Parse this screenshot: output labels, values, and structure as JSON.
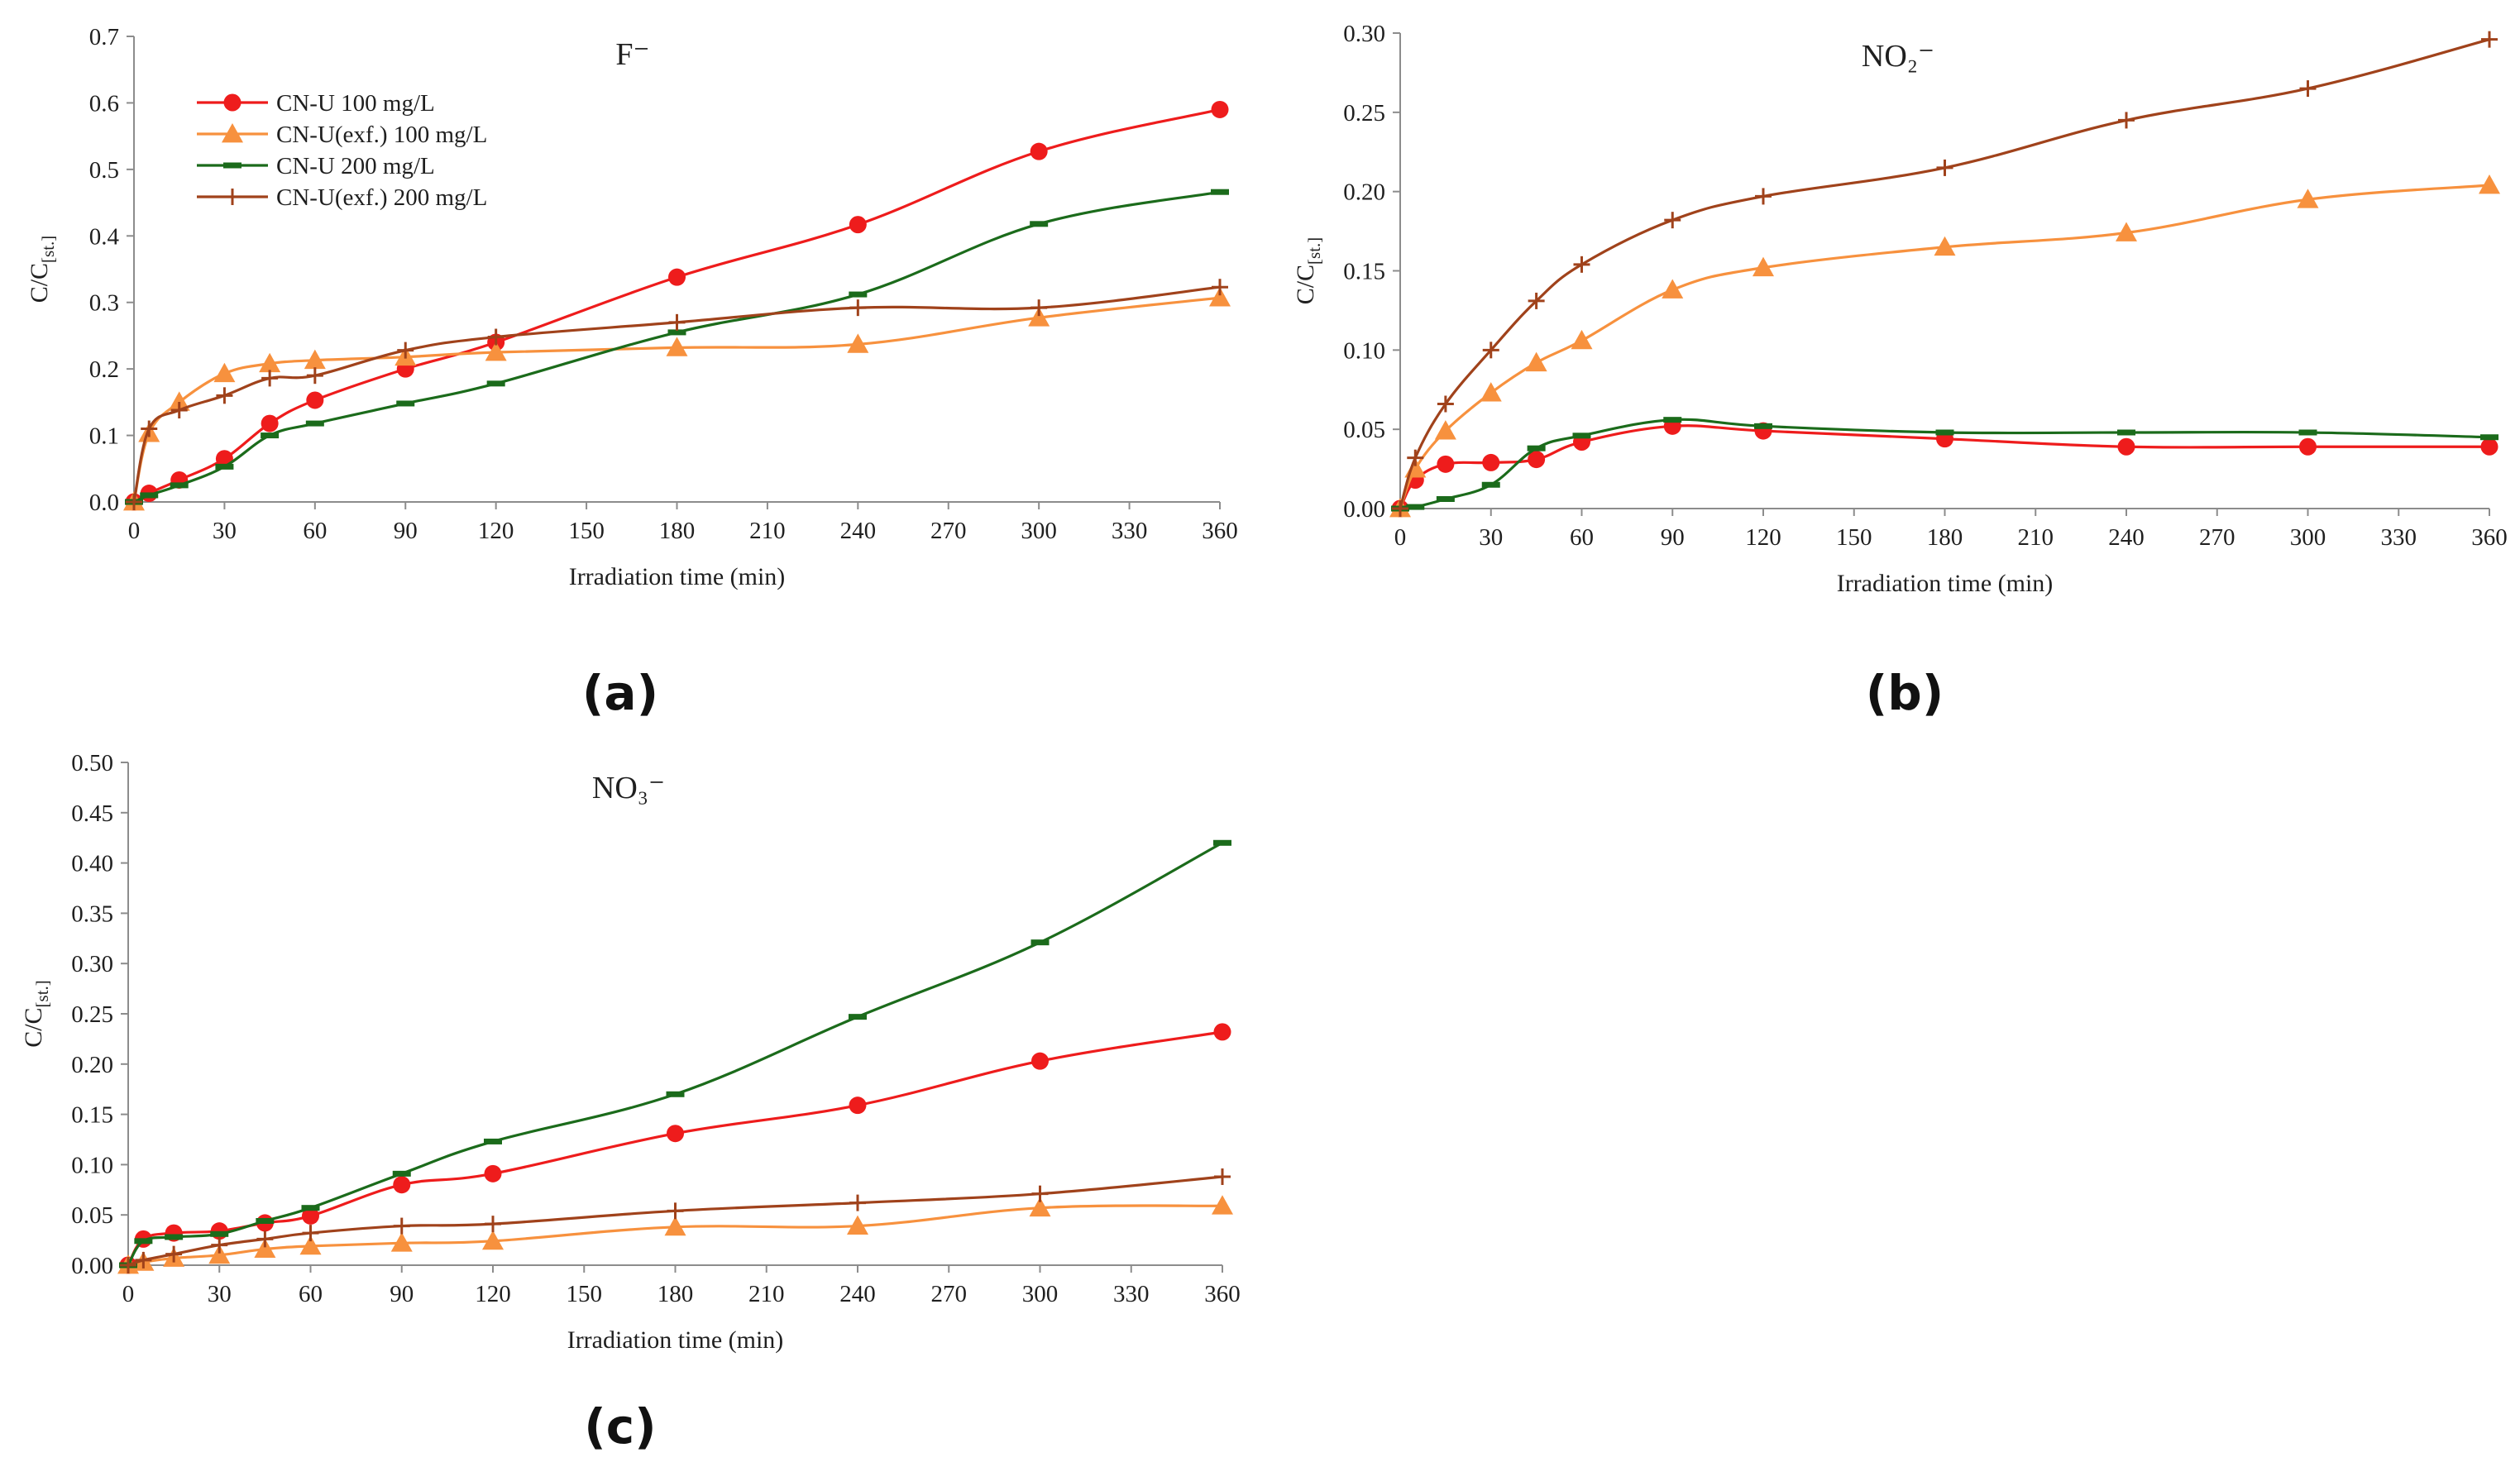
{
  "chart_data": [
    {
      "type": "line",
      "panel_label": "(a)",
      "title": "F⁻",
      "xlabel": "Irradiation time (min)",
      "ylabel": "C/C[st.]",
      "xlim": [
        0,
        360
      ],
      "ylim": [
        0,
        0.7
      ],
      "xticks": [
        0,
        30,
        60,
        90,
        120,
        150,
        180,
        210,
        240,
        270,
        300,
        330,
        360
      ],
      "yticks": [
        0,
        0.1,
        0.2,
        0.3,
        0.4,
        0.5,
        0.6,
        0.7
      ],
      "y_decimals": 1,
      "legend": "top-left",
      "grid": false,
      "x": [
        0,
        5,
        15,
        30,
        45,
        60,
        90,
        120,
        180,
        240,
        300,
        360
      ],
      "series": [
        {
          "name": "CN-U 100 mg/L",
          "color": "#ee1c1c",
          "marker": "circle",
          "values": [
            0,
            0.013,
            0.033,
            0.065,
            0.118,
            0.153,
            0.2,
            0.24,
            0.338,
            0.417,
            0.527,
            0.59
          ]
        },
        {
          "name": "CN-U(exf.) 100 mg/L",
          "color": "#f7913e",
          "marker": "triangle",
          "values": [
            0,
            0.103,
            0.15,
            0.193,
            0.208,
            0.213,
            0.218,
            0.225,
            0.232,
            0.237,
            0.277,
            0.307
          ]
        },
        {
          "name": "CN-U 200 mg/L",
          "color": "#1b6b1b",
          "marker": "dash",
          "values": [
            0,
            0.01,
            0.025,
            0.053,
            0.1,
            0.118,
            0.148,
            0.178,
            0.255,
            0.312,
            0.418,
            0.466
          ]
        },
        {
          "name": "CN-U(exf.) 200 mg/L",
          "color": "#a0421b",
          "marker": "plus",
          "values": [
            0,
            0.11,
            0.138,
            0.16,
            0.186,
            0.19,
            0.228,
            0.248,
            0.27,
            0.292,
            0.292,
            0.323
          ]
        }
      ]
    },
    {
      "type": "line",
      "panel_label": "(b)",
      "title": "NO₂⁻",
      "xlabel": "Irradiation time (min)",
      "ylabel": "C/C[st.]",
      "xlim": [
        0,
        360
      ],
      "ylim": [
        0,
        0.3
      ],
      "xticks": [
        0,
        30,
        60,
        90,
        120,
        150,
        180,
        210,
        240,
        270,
        300,
        330,
        360
      ],
      "yticks": [
        0,
        0.05,
        0.1,
        0.15,
        0.2,
        0.25,
        0.3
      ],
      "y_decimals": 2,
      "grid": false,
      "x": [
        0,
        5,
        15,
        30,
        45,
        60,
        90,
        120,
        180,
        240,
        300,
        360
      ],
      "series": [
        {
          "name": "CN-U 100 mg/L",
          "color": "#ee1c1c",
          "marker": "circle",
          "values": [
            0,
            0.018,
            0.028,
            0.029,
            0.031,
            0.042,
            0.052,
            0.049,
            0.044,
            0.039,
            0.039,
            0.039
          ]
        },
        {
          "name": "CN-U(exf.) 100 mg/L",
          "color": "#f7913e",
          "marker": "triangle",
          "values": [
            0,
            0.025,
            0.049,
            0.073,
            0.092,
            0.106,
            0.138,
            0.152,
            0.165,
            0.174,
            0.195,
            0.204
          ]
        },
        {
          "name": "CN-U 200 mg/L",
          "color": "#1b6b1b",
          "marker": "dash",
          "values": [
            0,
            0.001,
            0.006,
            0.015,
            0.038,
            0.046,
            0.056,
            0.052,
            0.048,
            0.048,
            0.048,
            0.045
          ]
        },
        {
          "name": "CN-U(exf.) 200 mg/L",
          "color": "#a0421b",
          "marker": "plus",
          "values": [
            0,
            0.032,
            0.066,
            0.1,
            0.131,
            0.154,
            0.182,
            0.197,
            0.215,
            0.245,
            0.265,
            0.296
          ]
        }
      ]
    },
    {
      "type": "line",
      "panel_label": "(c)",
      "title": "NO₃⁻",
      "xlabel": "Irradiation time (min)",
      "ylabel": "C/C[st.]",
      "xlim": [
        0,
        360
      ],
      "ylim": [
        0,
        0.5
      ],
      "xticks": [
        0,
        30,
        60,
        90,
        120,
        150,
        180,
        210,
        240,
        270,
        300,
        330,
        360
      ],
      "yticks": [
        0,
        0.05,
        0.1,
        0.15,
        0.2,
        0.25,
        0.3,
        0.35,
        0.4,
        0.45,
        0.5
      ],
      "y_decimals": 2,
      "grid": false,
      "x": [
        0,
        5,
        15,
        30,
        45,
        60,
        90,
        120,
        180,
        240,
        300,
        360
      ],
      "series": [
        {
          "name": "CN-U 100 mg/L",
          "color": "#ee1c1c",
          "marker": "circle",
          "values": [
            0,
            0.026,
            0.032,
            0.034,
            0.042,
            0.049,
            0.08,
            0.091,
            0.131,
            0.159,
            0.203,
            0.232
          ]
        },
        {
          "name": "CN-U(exf.) 100 mg/L",
          "color": "#f7913e",
          "marker": "triangle",
          "values": [
            0,
            0.003,
            0.007,
            0.01,
            0.016,
            0.019,
            0.022,
            0.024,
            0.038,
            0.039,
            0.057,
            0.059
          ]
        },
        {
          "name": "CN-U 200 mg/L",
          "color": "#1b6b1b",
          "marker": "dash",
          "values": [
            0,
            0.024,
            0.028,
            0.031,
            0.044,
            0.057,
            0.091,
            0.123,
            0.17,
            0.247,
            0.321,
            0.42
          ]
        },
        {
          "name": "CN-U(exf.) 200 mg/L",
          "color": "#a0421b",
          "marker": "plus",
          "values": [
            0,
            0.005,
            0.011,
            0.02,
            0.026,
            0.032,
            0.039,
            0.041,
            0.054,
            0.062,
            0.071,
            0.088
          ]
        }
      ]
    }
  ]
}
